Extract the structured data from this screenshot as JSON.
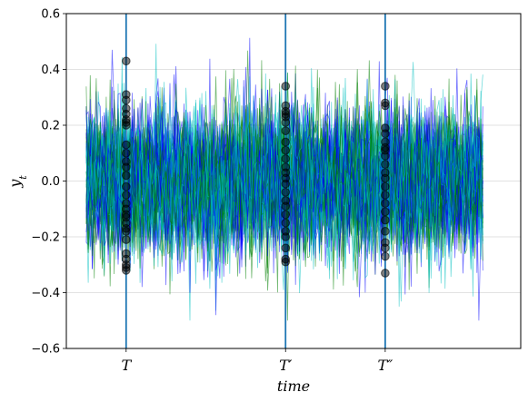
{
  "chart_data": {
    "type": "line",
    "xlabel": "time",
    "ylabel_base": "y",
    "ylabel_sub": "t",
    "ylim": [
      -0.6,
      0.6
    ],
    "xlim": [
      -10,
      218
    ],
    "grid": "horizontal",
    "y_ticks": [
      -0.6,
      -0.4,
      -0.2,
      0.0,
      0.2,
      0.4,
      0.6
    ],
    "y_tick_labels": [
      "−0.6",
      "−0.4",
      "−0.2",
      "0.0",
      "0.2",
      "0.4",
      "0.6"
    ],
    "x_ticks": [
      {
        "x": 20,
        "base": "T",
        "prime": ""
      },
      {
        "x": 100,
        "base": "T",
        "prime": "′"
      },
      {
        "x": 150,
        "base": "T",
        "prime": "″"
      }
    ],
    "vertical_lines_at": [
      20,
      100,
      150
    ],
    "time_points": 200,
    "n_series": 60,
    "series_std": 0.13,
    "series_colors": [
      "#0000ff",
      "#008000",
      "#00bfbf"
    ],
    "vline_color": "#1f77b4",
    "marker_color": "#000000",
    "sampled_values": {
      "T": [
        0.43,
        0.31,
        0.29,
        0.26,
        0.24,
        0.22,
        0.21,
        0.2,
        0.13,
        0.1,
        0.07,
        0.05,
        0.02,
        -0.02,
        -0.05,
        -0.08,
        -0.1,
        -0.12,
        -0.13,
        -0.15,
        -0.17,
        -0.18,
        -0.21,
        -0.26,
        -0.28,
        -0.3,
        -0.31,
        -0.32
      ],
      "T′": [
        0.34,
        0.27,
        0.25,
        0.24,
        0.23,
        0.21,
        0.18,
        0.14,
        0.11,
        0.08,
        0.05,
        0.03,
        0.01,
        -0.01,
        -0.04,
        -0.07,
        -0.09,
        -0.12,
        -0.15,
        -0.18,
        -0.2,
        -0.24,
        -0.28,
        -0.29
      ],
      "T″": [
        0.34,
        0.28,
        0.27,
        0.19,
        0.17,
        0.14,
        0.12,
        0.11,
        0.09,
        0.06,
        0.03,
        0.01,
        -0.02,
        -0.05,
        -0.08,
        -0.11,
        -0.14,
        -0.18,
        -0.22,
        -0.24,
        -0.27,
        -0.33
      ]
    }
  }
}
